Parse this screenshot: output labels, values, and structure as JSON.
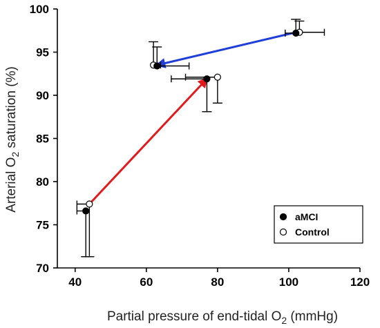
{
  "chart_data": {
    "type": "scatter",
    "xlabel": {
      "main": "Partial pressure of end-tidal O",
      "sub": "2",
      "tail": " (mmHg)"
    },
    "ylabel": {
      "main": "Arterial O",
      "sub": "2",
      "tail": " saturation (%)"
    },
    "xlim": [
      35,
      120
    ],
    "ylim": [
      70,
      100
    ],
    "xticks": [
      40,
      60,
      80,
      100,
      120
    ],
    "yticks": [
      70,
      75,
      80,
      85,
      90,
      95,
      100
    ],
    "legend_position": "bottom-right",
    "series": [
      {
        "name": "aMCI",
        "marker": "filled-circle",
        "points": [
          {
            "x": 43,
            "y": 76.6,
            "x_err_low": 2.5,
            "y_err_low": 5.3
          },
          {
            "x": 77,
            "y": 91.9,
            "x_err_low": 10,
            "y_err_low": 3.8
          },
          {
            "x": 63,
            "y": 93.4,
            "x_err_high": 9,
            "y_err_high": 2.2
          },
          {
            "x": 102,
            "y": 97.2,
            "x_err_low": 3,
            "y_err_high": 1.6
          }
        ]
      },
      {
        "name": "Control",
        "marker": "open-circle",
        "points": [
          {
            "x": 44,
            "y": 77.4,
            "x_err_low": 3.5,
            "y_err_low": 6.1
          },
          {
            "x": 80,
            "y": 92.1,
            "x_err_low": 9,
            "y_err_low": 3.0
          },
          {
            "x": 62,
            "y": 93.5,
            "x_err_high": 2,
            "y_err_high": 2.7
          },
          {
            "x": 103,
            "y": 97.3,
            "x_err_high": 7,
            "y_err_high": 1.3
          }
        ]
      }
    ],
    "arrows": [
      {
        "from": [
          44,
          77.4
        ],
        "to": [
          77,
          91.9
        ],
        "color": "#e31a1c"
      },
      {
        "from": [
          101,
          97.2
        ],
        "to": [
          63,
          93.5
        ],
        "color": "#1f3fd8"
      }
    ]
  }
}
